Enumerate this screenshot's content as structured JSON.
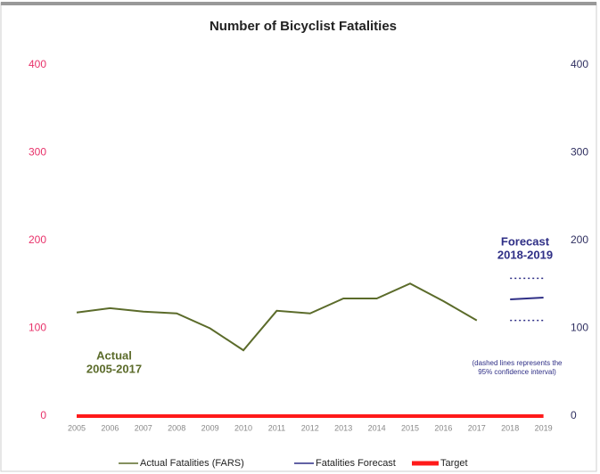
{
  "chart_data": {
    "type": "line",
    "title": "Number of Bicyclist Fatalities",
    "categories": [
      "2005",
      "2006",
      "2007",
      "2008",
      "2009",
      "2010",
      "2011",
      "2012",
      "2013",
      "2014",
      "2015",
      "2016",
      "2017",
      "2018",
      "2019"
    ],
    "series": [
      {
        "name": "Actual Fatalities (FARS)",
        "color": "#5b6b2a",
        "values": [
          118,
          123,
          119,
          117,
          100,
          75,
          120,
          117,
          134,
          134,
          151,
          131,
          109,
          null,
          null
        ]
      },
      {
        "name": "Fatalities Forecast",
        "color": "#2f2f86",
        "values": [
          null,
          null,
          null,
          null,
          null,
          null,
          null,
          null,
          null,
          null,
          null,
          null,
          null,
          133,
          135
        ]
      },
      {
        "name": "Target",
        "color": "#ff1a1a",
        "values": [
          0,
          0,
          0,
          0,
          0,
          0,
          0,
          0,
          0,
          0,
          0,
          0,
          0,
          0,
          0
        ]
      }
    ],
    "confidence_interval": {
      "color": "#2f2f86",
      "upper": [
        null,
        null,
        null,
        null,
        null,
        null,
        null,
        null,
        null,
        null,
        null,
        null,
        null,
        157,
        157
      ],
      "lower": [
        null,
        null,
        null,
        null,
        null,
        null,
        null,
        null,
        null,
        null,
        null,
        null,
        null,
        109,
        109
      ]
    },
    "annotations": [
      {
        "lines": [
          "Actual",
          "2005-2017"
        ],
        "color": "#5b6b2a"
      },
      {
        "lines": [
          "Forecast",
          "2018-2019"
        ],
        "color": "#2f2f86"
      },
      {
        "lines": [
          "(dashed lines represents the",
          "95% confidence interval)"
        ],
        "color": "#2f2f86"
      }
    ],
    "ylim": [
      0,
      400
    ],
    "yticks": [
      0,
      100,
      200,
      300,
      400
    ],
    "ycolor": "#e8326a",
    "y2lim": [
      0,
      400
    ],
    "y2ticks": [
      0,
      100,
      200,
      300,
      400
    ],
    "y2color": "#2f2f60",
    "grid": false,
    "legend": "bottom"
  }
}
